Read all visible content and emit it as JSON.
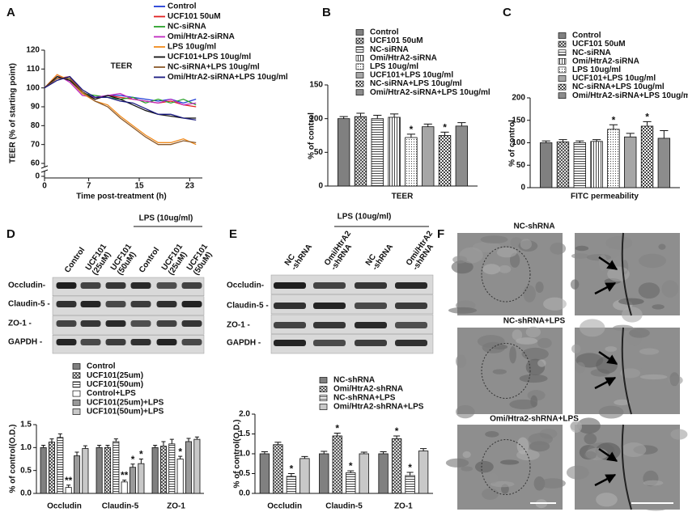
{
  "chart_data": [
    {
      "type": "line",
      "panel": "A",
      "title": "TEER",
      "ylabel": "TEER (% of starting point)",
      "xlabel": "Time post-treatment (h)",
      "x": [
        0,
        2,
        4,
        6,
        8,
        10,
        12,
        14,
        16,
        18,
        20,
        22,
        24
      ],
      "xlim": [
        0,
        25
      ],
      "xticks": [
        0,
        7,
        15,
        23
      ],
      "ylim": [
        60,
        120
      ],
      "yticks": [
        60,
        70,
        80,
        90,
        100,
        110,
        120
      ],
      "y_axis_break_tick": 0,
      "series": [
        {
          "name": "Control",
          "color": "#1f3bd6",
          "values": [
            100,
            106,
            104,
            97,
            95,
            96,
            96,
            95,
            94,
            93,
            94,
            92,
            94
          ]
        },
        {
          "name": "UCF101 50uM",
          "color": "#e02020",
          "values": [
            100,
            105,
            106,
            98,
            94,
            96,
            95,
            94,
            93,
            92,
            93,
            91,
            90
          ]
        },
        {
          "name": "NC-siRNA",
          "color": "#2aa12a",
          "values": [
            100,
            106,
            105,
            97,
            96,
            95,
            94,
            95,
            92,
            94,
            92,
            94,
            91
          ]
        },
        {
          "name": "Omi/HtrA2-siRNA",
          "color": "#c02ac0",
          "values": [
            100,
            107,
            103,
            96,
            95,
            96,
            97,
            94,
            93,
            92,
            94,
            91,
            92
          ]
        },
        {
          "name": "LPS 10ug/ml",
          "color": "#f08a1c",
          "values": [
            100,
            107,
            104,
            97,
            93,
            91,
            85,
            80,
            75,
            71,
            71,
            73,
            70
          ]
        },
        {
          "name": "UCF101+LPS 10ug/ml",
          "color": "#111111",
          "values": [
            100,
            106,
            104,
            98,
            94,
            96,
            94,
            91,
            88,
            86,
            85,
            84,
            84
          ]
        },
        {
          "name": "NC-siRNA+LPS 10ug/ml",
          "color": "#8b5a2b",
          "values": [
            100,
            105,
            105,
            98,
            93,
            90,
            84,
            79,
            74,
            70,
            70,
            72,
            71
          ]
        },
        {
          "name": "Omi/HtrA2-siRNA+LPS 10ug/ml",
          "color": "#1a1a80",
          "values": [
            100,
            104,
            106,
            99,
            95,
            95,
            93,
            92,
            89,
            86,
            86,
            84,
            83
          ]
        }
      ]
    },
    {
      "type": "bar",
      "panel": "B",
      "ylabel": "% of control",
      "xlabel": "TEER",
      "ylim": [
        0,
        150
      ],
      "yticks": [
        0,
        50,
        100,
        150
      ],
      "series": [
        {
          "name": "Control",
          "color": "#808080",
          "values": [
            100
          ],
          "errors": [
            3
          ]
        },
        {
          "name": "UCF101 50uM",
          "pattern": "crosshatch",
          "values": [
            103
          ],
          "errors": [
            5
          ]
        },
        {
          "name": "NC-siRNA",
          "pattern": "hstripe",
          "values": [
            100
          ],
          "errors": [
            5
          ]
        },
        {
          "name": "Omi/HtrA2-siRNA",
          "pattern": "vstripe",
          "values": [
            102
          ],
          "errors": [
            5
          ]
        },
        {
          "name": "LPS 10ug/ml",
          "pattern": "dots",
          "values": [
            72
          ],
          "errors": [
            5
          ],
          "sig": [
            "*"
          ]
        },
        {
          "name": "UCF101+LPS 10ug/ml",
          "color": "#a6a6a6",
          "values": [
            88
          ],
          "errors": [
            4
          ]
        },
        {
          "name": "NC-siRNA+LPS 10ug/ml",
          "pattern": "checker",
          "values": [
            75
          ],
          "errors": [
            5
          ],
          "sig": [
            "*"
          ]
        },
        {
          "name": "Omi/HtrA2-siRNA+LPS 10ug/ml",
          "color": "#8c8c8c",
          "values": [
            89
          ],
          "errors": [
            5
          ]
        }
      ]
    },
    {
      "type": "bar",
      "panel": "C",
      "ylabel": "% of control",
      "xlabel": "FITC permeability",
      "ylim": [
        0,
        200
      ],
      "yticks": [
        0,
        50,
        100,
        150,
        200
      ],
      "series": [
        {
          "name": "Control",
          "color": "#808080",
          "values": [
            100
          ],
          "errors": [
            4
          ]
        },
        {
          "name": "UCF101 50uM",
          "pattern": "crosshatch",
          "values": [
            102
          ],
          "errors": [
            5
          ]
        },
        {
          "name": "NC-siRNA",
          "pattern": "hstripe",
          "values": [
            100
          ],
          "errors": [
            4
          ]
        },
        {
          "name": "Omi/HtrA2-siRNA",
          "pattern": "vstripe",
          "values": [
            103
          ],
          "errors": [
            4
          ]
        },
        {
          "name": "LPS 10ug/ml",
          "pattern": "dots",
          "values": [
            130
          ],
          "errors": [
            10
          ],
          "sig": [
            "*"
          ]
        },
        {
          "name": "UCF101+LPS 10ug/ml",
          "color": "#a6a6a6",
          "values": [
            113
          ],
          "errors": [
            8
          ]
        },
        {
          "name": "NC-siRNA+LPS 10ug/ml",
          "pattern": "checker",
          "values": [
            137
          ],
          "errors": [
            10
          ],
          "sig": [
            "*"
          ]
        },
        {
          "name": "Omi/HtrA2-siRNA+LPS 10ug/ml",
          "color": "#8c8c8c",
          "values": [
            110
          ],
          "errors": [
            17
          ]
        }
      ]
    },
    {
      "type": "bar",
      "ylabel": "% of control(O.D.)",
      "categories": [
        "Occludin",
        "Claudin-5",
        "ZO-1"
      ],
      "ylim": [
        0,
        1.5
      ],
      "yticks": [
        {
          "value": 0,
          "label": "0.0"
        },
        {
          "value": 0.5,
          "label": "0.5"
        },
        {
          "value": 1,
          "label": "1.0"
        },
        {
          "value": 1.5,
          "label": "1.5"
        }
      ],
      "series": [
        {
          "name": "Control",
          "color": "#808080",
          "values": [
            1.0,
            1.0,
            1.0
          ],
          "errors": [
            0.05,
            0.05,
            0.05
          ]
        },
        {
          "name": "UCF101(25um)",
          "pattern": "crosshatch",
          "values": [
            1.12,
            1.0,
            1.03
          ],
          "errors": [
            0.07,
            0.05,
            0.1
          ]
        },
        {
          "name": "UCF101(50um)",
          "pattern": "hstripe",
          "values": [
            1.22,
            1.13,
            1.08
          ],
          "errors": [
            0.08,
            0.06,
            0.1
          ]
        },
        {
          "name": "Control+LPS",
          "color": "#ffffff",
          "values": [
            0.13,
            0.25,
            0.75
          ],
          "errors": [
            0.05,
            0.04,
            0.06
          ],
          "sig": [
            "**",
            "**",
            "*"
          ]
        },
        {
          "name": "UCF101(25um)+LPS",
          "color": "#9a9a9a",
          "values": [
            0.82,
            0.57,
            1.13
          ],
          "errors": [
            0.08,
            0.07,
            0.07
          ],
          "sig": [
            null,
            "*",
            null
          ]
        },
        {
          "name": "UCF101(50um)+LPS",
          "color": "#c8c8c8",
          "values": [
            0.98,
            0.65,
            1.18
          ],
          "errors": [
            0.06,
            0.1,
            0.05
          ],
          "sig": [
            null,
            "*",
            null
          ]
        }
      ]
    },
    {
      "type": "bar",
      "ylabel": "% of control(O.D.)",
      "categories": [
        "Occludin",
        "Claudin-5",
        "ZO-1"
      ],
      "ylim": [
        0,
        2
      ],
      "yticks": [
        {
          "value": 0,
          "label": "0.0"
        },
        {
          "value": 0.5,
          "label": "0.5"
        },
        {
          "value": 1,
          "label": "1.0"
        },
        {
          "value": 1.5,
          "label": "1.5"
        },
        {
          "value": 2,
          "label": "2.0"
        }
      ],
      "series": [
        {
          "name": "NC-shRNA",
          "color": "#808080",
          "values": [
            1.0,
            1.0,
            1.0
          ],
          "errors": [
            0.05,
            0.06,
            0.05
          ]
        },
        {
          "name": "Omi/HtrA2-shRNA",
          "pattern": "crosshatch",
          "values": [
            1.23,
            1.45,
            1.38
          ],
          "errors": [
            0.06,
            0.07,
            0.07
          ],
          "sig": [
            null,
            "*",
            "*"
          ]
        },
        {
          "name": "NC-shRNA+LPS",
          "pattern": "hstripe",
          "values": [
            0.43,
            0.52,
            0.45
          ],
          "errors": [
            0.07,
            0.05,
            0.08
          ],
          "sig": [
            "*",
            "*",
            "*"
          ]
        },
        {
          "name": "Omi/HtrA2-shRNA+LPS",
          "color": "#c8c8c8",
          "values": [
            0.88,
            1.0,
            1.07
          ],
          "errors": [
            0.05,
            0.04,
            0.06
          ]
        }
      ]
    }
  ],
  "blots": [
    {
      "panel": "D",
      "group_label": "LPS (10ug/ml)",
      "lanes": [
        [
          "Control"
        ],
        [
          "UCF101",
          "(25uM)"
        ],
        [
          "UCF101",
          "(50uM)"
        ],
        [
          "Control"
        ],
        [
          "UCF101",
          "(25uM)"
        ],
        [
          "UCF101",
          "(50uM)"
        ]
      ],
      "rows": [
        "Occludin-",
        "Claudin-5 -",
        "ZO-1 -",
        "GAPDH -"
      ]
    },
    {
      "panel": "E",
      "group_label": "LPS (10ug/ml)",
      "lanes": [
        [
          "NC",
          "-shRNA"
        ],
        [
          "Omi/HtrA2",
          "-shRNA"
        ],
        [
          "NC",
          "-shRNA"
        ],
        [
          "Omi/HtrA2",
          "-shRNA"
        ]
      ],
      "rows": [
        "Occludin-",
        "Claudin-5 -",
        "ZO-1 -",
        "GAPDH -"
      ]
    }
  ],
  "micrographs": {
    "panel": "F",
    "titles": [
      "NC-shRNA",
      "NC-shRNA+LPS",
      "Omi/Htra2-shRNA+LPS"
    ]
  }
}
